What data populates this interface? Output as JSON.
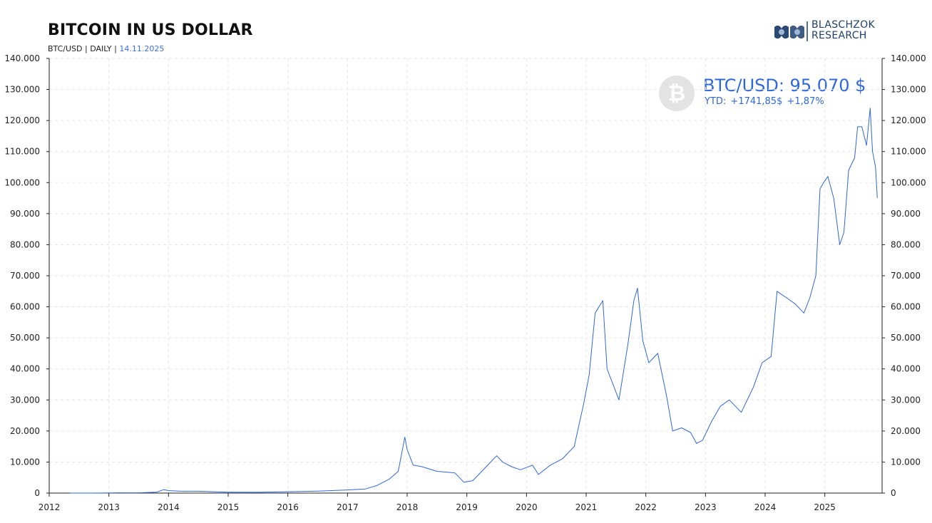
{
  "header": {
    "title": "BITCOIN IN US DOLLAR",
    "subtitle_prefix": "BTC/USD | DAILY |",
    "subtitle_date": "14.11.2025"
  },
  "logo": {
    "line1": "BLASCHZOK",
    "line2": "RESEARCH"
  },
  "price_box": {
    "icon": "bitcoin-icon",
    "icon_glyph": "₿",
    "price_label": "BTC/USD: 95.070 $",
    "ytd_label": "YTD:",
    "ytd_abs": "+1741,85$",
    "ytd_pct": "+1,87%"
  },
  "colors": {
    "line": "#2f67d8",
    "accent": "#3b6fd8",
    "grid": "#e6e6e6",
    "text": "#222222"
  },
  "chart_data": {
    "type": "line",
    "title": "BITCOIN IN US DOLLAR",
    "xlabel": "",
    "ylabel": "",
    "ylim": [
      0,
      140000
    ],
    "xlim": [
      2012.0,
      2025.96
    ],
    "y_ticks": [
      "0",
      "10.000",
      "20.000",
      "30.000",
      "40.000",
      "50.000",
      "60.000",
      "70.000",
      "80.000",
      "90.000",
      "100.000",
      "110.000",
      "120.000",
      "130.000",
      "140.000"
    ],
    "y_tick_values": [
      0,
      10000,
      20000,
      30000,
      40000,
      50000,
      60000,
      70000,
      80000,
      90000,
      100000,
      110000,
      120000,
      130000,
      140000
    ],
    "x_ticks": [
      "2012",
      "2013",
      "2014",
      "2015",
      "2016",
      "2017",
      "2018",
      "2019",
      "2020",
      "2021",
      "2022",
      "2023",
      "2024",
      "2025"
    ],
    "x_tick_values": [
      2012,
      2013,
      2014,
      2015,
      2016,
      2017,
      2018,
      2019,
      2020,
      2021,
      2022,
      2023,
      2024,
      2025
    ],
    "grid": true,
    "legend": "none",
    "series": [
      {
        "x": [
          2012.35,
          2012.6,
          2012.9,
          2013.2,
          2013.5,
          2013.8,
          2013.92,
          2014.0,
          2014.2,
          2014.5,
          2014.8,
          2015.0,
          2015.5,
          2016.0,
          2016.5,
          2017.0,
          2017.3,
          2017.5,
          2017.7,
          2017.85,
          2017.96,
          2018.0,
          2018.1,
          2018.25,
          2018.5,
          2018.8,
          2018.95,
          2019.1,
          2019.3,
          2019.5,
          2019.6,
          2019.75,
          2019.9,
          2020.1,
          2020.2,
          2020.4,
          2020.6,
          2020.8,
          2020.96,
          2021.05,
          2021.15,
          2021.28,
          2021.35,
          2021.45,
          2021.55,
          2021.7,
          2021.8,
          2021.86,
          2021.95,
          2022.05,
          2022.2,
          2022.35,
          2022.45,
          2022.6,
          2022.75,
          2022.85,
          2022.95,
          2023.1,
          2023.25,
          2023.4,
          2023.6,
          2023.8,
          2023.95,
          2024.1,
          2024.2,
          2024.35,
          2024.5,
          2024.65,
          2024.75,
          2024.85,
          2024.92,
          2024.98,
          2025.05,
          2025.15,
          2025.25,
          2025.32,
          2025.4,
          2025.5,
          2025.55,
          2025.62,
          2025.7,
          2025.76,
          2025.8,
          2025.85,
          2025.88
        ],
        "y": [
          5,
          10,
          13,
          100,
          90,
          300,
          1100,
          800,
          600,
          600,
          380,
          300,
          250,
          430,
          650,
          1000,
          1300,
          2500,
          4500,
          7000,
          18000,
          14000,
          9000,
          8500,
          7000,
          6500,
          3500,
          4000,
          8000,
          12000,
          10000,
          8500,
          7500,
          9000,
          6000,
          9000,
          11000,
          15000,
          29000,
          38000,
          58000,
          62000,
          40000,
          35000,
          30000,
          48000,
          62000,
          66000,
          49000,
          42000,
          45000,
          31000,
          20000,
          21000,
          19500,
          16000,
          17000,
          23000,
          28000,
          30000,
          26000,
          34000,
          42000,
          44000,
          65000,
          63000,
          61000,
          58000,
          63000,
          70000,
          98000,
          100000,
          102000,
          95000,
          80000,
          84000,
          104000,
          108000,
          118000,
          118000,
          112000,
          124000,
          110000,
          105000,
          95070
        ]
      }
    ]
  }
}
